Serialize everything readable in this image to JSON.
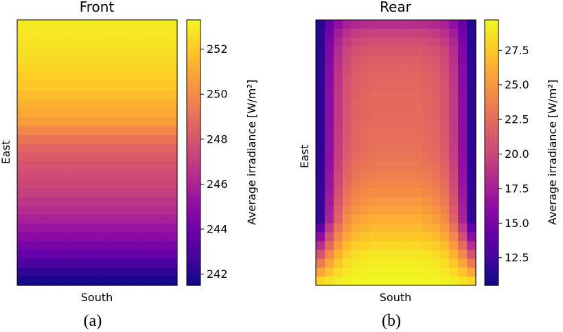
{
  "chart_data": [
    {
      "type": "heatmap",
      "panel_label": "(a)",
      "title": "Front",
      "xlabel": "South",
      "ylabel": "East",
      "colorbar": {
        "label": "Average irradiance [W/m²]",
        "colormap": "plasma",
        "vmin": 241.5,
        "vmax": 253.3,
        "ticks": [
          242,
          244,
          246,
          248,
          250,
          252
        ],
        "tick_labels": [
          "242",
          "244",
          "246",
          "248",
          "250",
          "252"
        ]
      },
      "rows": 30,
      "cols": 18,
      "row_values": [
        252.9,
        252.8,
        252.7,
        252.6,
        252.5,
        252.3,
        252.1,
        251.9,
        251.6,
        251.3,
        251.0,
        250.6,
        249.9,
        249.2,
        248.6,
        248.2,
        247.9,
        247.6,
        247.4,
        247.1,
        246.7,
        246.3,
        245.9,
        245.4,
        244.9,
        244.3,
        243.7,
        243.0,
        242.3,
        241.7
      ],
      "row_order": "top-to-bottom"
    },
    {
      "type": "heatmap",
      "panel_label": "(b)",
      "title": "Rear",
      "xlabel": "South",
      "ylabel": "East",
      "colorbar": {
        "label": "Average irradiance [W/m²]",
        "colormap": "plasma",
        "vmin": 10.5,
        "vmax": 29.7,
        "ticks": [
          12.5,
          15.0,
          17.5,
          20.0,
          22.5,
          25.0,
          27.5
        ],
        "tick_labels": [
          "12.5",
          "15.0",
          "17.5",
          "20.0",
          "22.5",
          "25.0",
          "27.5"
        ]
      },
      "rows": 30,
      "cols": 18,
      "center_row_values": [
        18.5,
        19.8,
        20.6,
        21.2,
        21.6,
        21.9,
        22.1,
        22.2,
        22.3,
        22.4,
        22.4,
        22.5,
        22.6,
        22.7,
        22.8,
        23.0,
        23.3,
        23.6,
        24.0,
        24.5,
        25.0,
        25.6,
        26.2,
        26.8,
        27.5,
        28.2,
        28.8,
        29.2,
        29.4,
        29.5
      ],
      "edge_profile": [
        0.08,
        0.45,
        0.72,
        0.88,
        0.95,
        0.98,
        1.0,
        1.0,
        1.0,
        1.0,
        1.0,
        1.0,
        0.98,
        0.95,
        0.88,
        0.72,
        0.45,
        0.08
      ],
      "row_order": "top-to-bottom"
    }
  ]
}
